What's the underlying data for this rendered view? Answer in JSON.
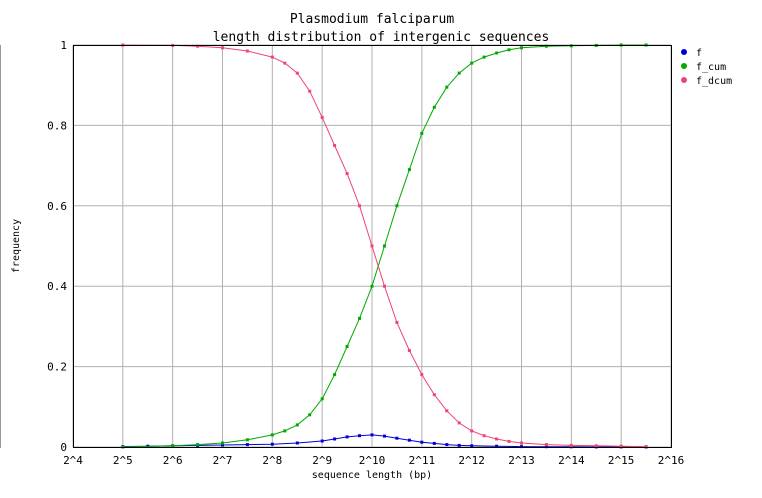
{
  "chart_data": {
    "type": "line",
    "title": "Plasmodium falciparum",
    "subtitle": "length distribution of intergenic sequences",
    "xlabel": "sequence length (bp)",
    "ylabel": "frequency",
    "x_scale": "log2",
    "xlim": [
      4,
      16
    ],
    "ylim": [
      0,
      1
    ],
    "x_tick_values": [
      4,
      5,
      6,
      7,
      8,
      9,
      10,
      11,
      12,
      13,
      14,
      15,
      16
    ],
    "x_tick_labels": [
      "2^4",
      "2^5",
      "2^6",
      "2^7",
      "2^8",
      "2^9",
      "2^10",
      "2^11",
      "2^12",
      "2^13",
      "2^14",
      "2^15",
      "2^16"
    ],
    "y_tick_values": [
      0,
      0.2,
      0.4,
      0.6,
      0.8,
      1
    ],
    "y_tick_labels": [
      "0",
      "0.2",
      "0.4",
      "0.6",
      "0.8",
      "1"
    ],
    "grid": true,
    "legend_position": "right",
    "series": [
      {
        "name": "f",
        "color": "#0000dd",
        "x": [
          5,
          5.5,
          6,
          6.5,
          7,
          7.5,
          8,
          8.5,
          9,
          9.25,
          9.5,
          9.75,
          10,
          10.25,
          10.5,
          10.75,
          11,
          11.25,
          11.5,
          11.75,
          12,
          12.5,
          13,
          13.5,
          14,
          14.5,
          15,
          15.5
        ],
        "y": [
          0.001,
          0.002,
          0.003,
          0.004,
          0.005,
          0.006,
          0.007,
          0.01,
          0.015,
          0.02,
          0.025,
          0.028,
          0.03,
          0.027,
          0.022,
          0.017,
          0.012,
          0.009,
          0.006,
          0.004,
          0.003,
          0.002,
          0.001,
          0.0008,
          0.0005,
          0.0003,
          0.0002,
          0.0001
        ]
      },
      {
        "name": "f_cum",
        "color": "#00aa00",
        "x": [
          5,
          6,
          6.5,
          7,
          7.5,
          8,
          8.25,
          8.5,
          8.75,
          9,
          9.25,
          9.5,
          9.75,
          10,
          10.25,
          10.5,
          10.75,
          11,
          11.25,
          11.5,
          11.75,
          12,
          12.25,
          12.5,
          12.75,
          13,
          13.5,
          14,
          14.5,
          15,
          15.5
        ],
        "y": [
          0.0,
          0.003,
          0.006,
          0.01,
          0.018,
          0.03,
          0.04,
          0.055,
          0.08,
          0.12,
          0.18,
          0.25,
          0.32,
          0.4,
          0.5,
          0.6,
          0.69,
          0.78,
          0.845,
          0.895,
          0.93,
          0.955,
          0.97,
          0.98,
          0.988,
          0.993,
          0.997,
          0.998,
          0.999,
          1.0,
          1.0
        ]
      },
      {
        "name": "f_dcum",
        "color": "#ee4477",
        "x": [
          5,
          6,
          6.5,
          7,
          7.5,
          8,
          8.25,
          8.5,
          8.75,
          9,
          9.25,
          9.5,
          9.75,
          10,
          10.25,
          10.5,
          10.75,
          11,
          11.25,
          11.5,
          11.75,
          12,
          12.25,
          12.5,
          12.75,
          13,
          13.5,
          14,
          14.5,
          15,
          15.5
        ],
        "y": [
          1.0,
          0.999,
          0.997,
          0.993,
          0.985,
          0.97,
          0.955,
          0.93,
          0.885,
          0.82,
          0.75,
          0.68,
          0.6,
          0.5,
          0.4,
          0.31,
          0.24,
          0.18,
          0.13,
          0.09,
          0.06,
          0.04,
          0.028,
          0.02,
          0.014,
          0.01,
          0.006,
          0.004,
          0.003,
          0.002,
          0.001
        ]
      }
    ]
  }
}
